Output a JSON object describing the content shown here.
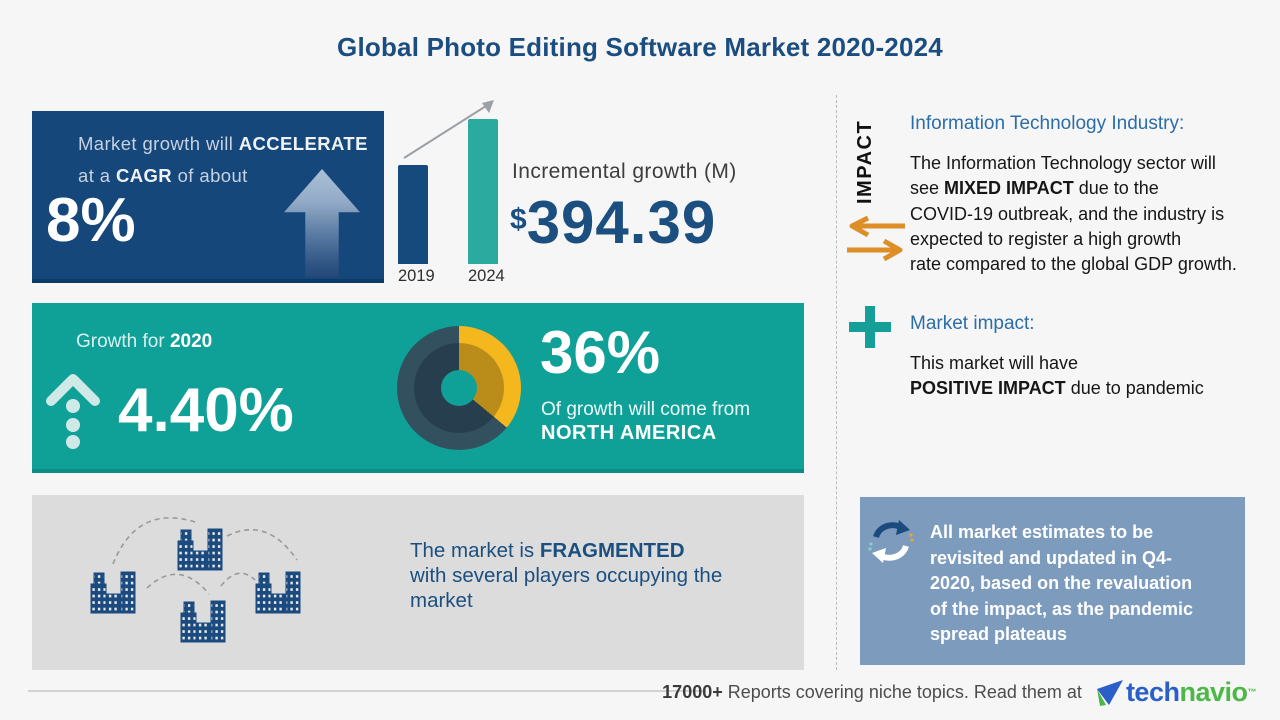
{
  "page": {
    "title": "Global Photo Editing Software Market 2020-2024"
  },
  "colors": {
    "navy": "#15477B",
    "teal": "#0FA098",
    "bar_2019": "#174A7C",
    "bar_2024": "#2BAB9F",
    "yellow": "#F5B71E",
    "donut_slate": "#33505F",
    "slate_card": "#7C9BBD",
    "orange_arrows": "#DE8E26",
    "heading_blue": "#2B6DA8",
    "brand_blue": "#2A5FC8",
    "brand_green": "#4DB848"
  },
  "cagr_card": {
    "line1_pre": "Market growth will ",
    "line1_bold": "ACCELERATE",
    "line2_pre": "at a ",
    "line2_bold": "CAGR",
    "line2_post": " of about",
    "value": "8%"
  },
  "incremental": {
    "label": "Incremental growth (M)",
    "currency": "$",
    "value": "394.39"
  },
  "growth_card": {
    "label_pre": "Growth for ",
    "year": "2020",
    "value": "4.40%",
    "share_pct": "36%",
    "share_line": "Of growth will come from",
    "share_region": "NORTH AMERICA"
  },
  "fragmented_card": {
    "pre": "The market is ",
    "bold": "FRAGMENTED",
    "rest": "with several players occupying the market"
  },
  "impact_column": {
    "label": "IMPACT",
    "it_heading": "Information Technology Industry:",
    "it_l1": "The Information Technology sector will",
    "it_l2_pre": "see ",
    "it_l2_bold": "MIXED IMPACT",
    "it_l2_post": " due to the",
    "it_l3": "COVID-19 outbreak, and the industry is",
    "it_l4": "expected to register a high growth",
    "it_l5": "rate compared to the global GDP growth.",
    "mi_heading": "Market impact:",
    "mi_l1": "This market will have",
    "mi_l2_bold": "POSITIVE IMPACT",
    "mi_l2_post": " due to pandemic"
  },
  "estimates_note": {
    "lines": [
      "All market estimates to be",
      "revisited and updated in Q4-",
      "2020, based on the revaluation",
      "of the impact, as the pandemic",
      "spread plateaus"
    ]
  },
  "footer": {
    "count": "17000+",
    "text": " Reports covering niche topics. Read them at",
    "brand_tech": "tech",
    "brand_navio": "navio",
    "tm": "™"
  },
  "chart_data": [
    {
      "type": "bar",
      "title": "Incremental growth (M)",
      "categories": [
        "2019",
        "2024"
      ],
      "values": [
        100,
        147
      ],
      "colors": [
        "#174A7C",
        "#2BAB9F"
      ],
      "annotation": "$394.39 M incremental growth from 2019 to 2024 (~8% CAGR)",
      "axis": "unlabeled relative index, 2019 = 100"
    },
    {
      "type": "pie",
      "title": "Share of growth by region",
      "labels": [
        "North America",
        "Rest of world"
      ],
      "values": [
        36,
        64
      ],
      "colors": [
        "#F5B71E",
        "#33505F"
      ],
      "annotation": "36% of growth will come from North America"
    }
  ]
}
